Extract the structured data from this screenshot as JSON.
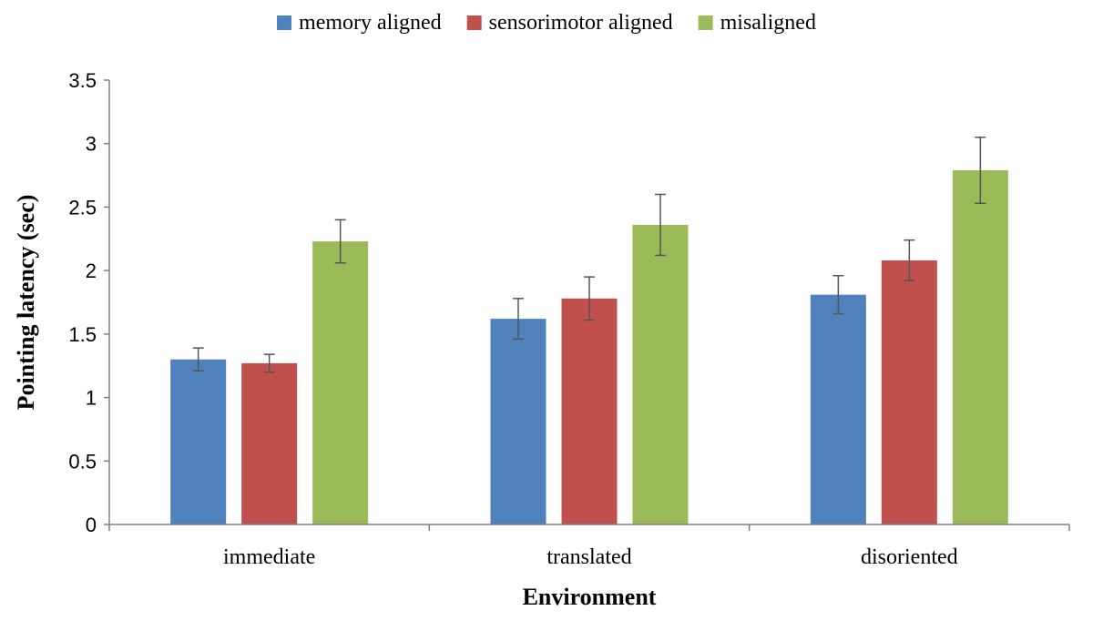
{
  "chart_data": {
    "type": "bar",
    "categories": [
      "immediate",
      "translated",
      "disoriented"
    ],
    "series": [
      {
        "name": "memory aligned",
        "color": "#4F81BD",
        "values": [
          1.3,
          1.62,
          1.81
        ],
        "errors": [
          0.09,
          0.16,
          0.15
        ]
      },
      {
        "name": "sensorimotor aligned",
        "color": "#C0504D",
        "values": [
          1.27,
          1.78,
          2.08
        ],
        "errors": [
          0.07,
          0.17,
          0.16
        ]
      },
      {
        "name": "misaligned",
        "color": "#9BBB59",
        "values": [
          2.23,
          2.36,
          2.79
        ],
        "errors": [
          0.17,
          0.24,
          0.26
        ]
      }
    ],
    "xlabel": "Environment",
    "ylabel": "Pointing latency (sec)",
    "ylim": [
      0,
      3.5
    ],
    "yticks": [
      "0",
      "0.5",
      "1",
      "1.5",
      "2",
      "2.5",
      "3",
      "3.5"
    ],
    "grid": false,
    "legend_position": "top"
  }
}
